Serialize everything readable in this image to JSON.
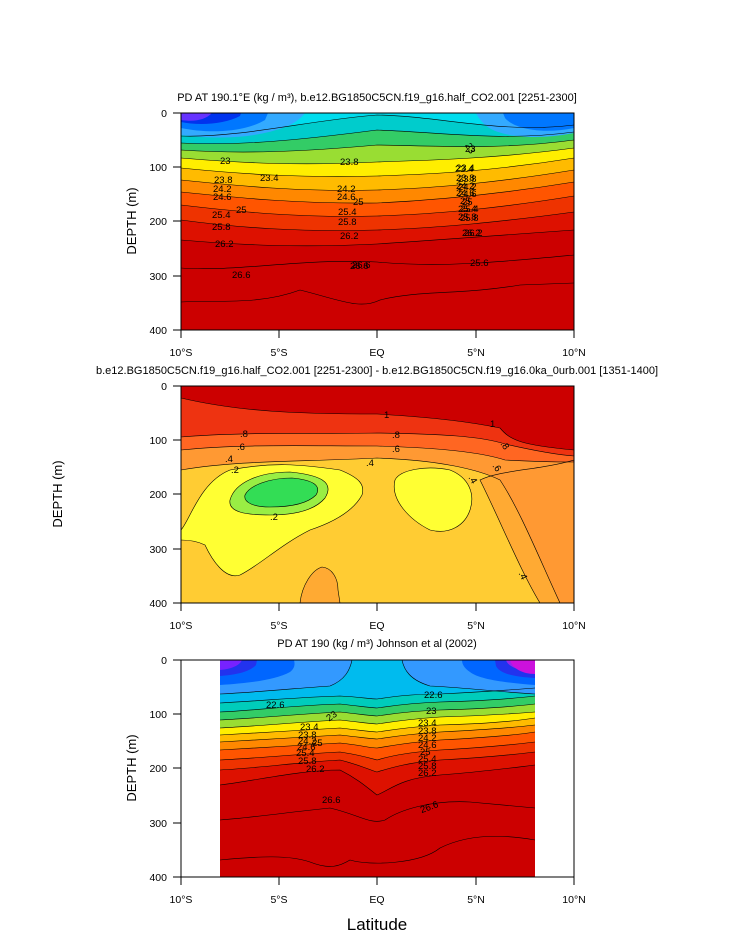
{
  "figure": {
    "xlabel": "Latitude",
    "colors": {
      "deep": "#cc0000",
      "red2": "#dd2200",
      "red3": "#ee3300",
      "orange": "#ff6600",
      "orange2": "#ff9900",
      "yellow": "#ffdd00",
      "green": "#33cc33",
      "cyan": "#00e5ff",
      "blue": "#0088ff",
      "blue2": "#0044ff",
      "purple": "#6600ff",
      "magenta": "#cc00ff",
      "pale_yellow": "#ffee33",
      "light_orange": "#ffaa33",
      "lime": "#33ff66"
    }
  },
  "chart_data": [
    {
      "type": "contour",
      "title": "PD AT 190.1°E (kg / m³), b.e12.BG1850C5CN.f19_g16.half_CO2.001 [2251-2300]",
      "xlabel": "",
      "ylabel": "DEPTH (m)",
      "xlim": [
        -10,
        10
      ],
      "ylim": [
        400,
        0
      ],
      "xticks": [
        "10°S",
        "5°S",
        "EQ",
        "5°N",
        "10°N"
      ],
      "yticks": [
        "0",
        "100",
        "200",
        "300",
        "400"
      ],
      "contour_labels": [
        "23",
        "23.4",
        "23.8",
        "24.2",
        "24.6",
        "25",
        "25.4",
        "25.8",
        "26.2",
        "26.6",
        "23",
        "23.4",
        "23.8",
        "24.2",
        "24.6",
        "25",
        "25.4",
        "25.8",
        "26.2",
        "26.6",
        "23.8",
        "24.2",
        "24.6",
        "25",
        "25.4",
        "25.8",
        "26.2",
        "26.6",
        "23",
        "23.4",
        "23.8",
        "24.2",
        "24.6",
        "25",
        "25.4",
        "25.8",
        "26.2",
        "25.6"
      ]
    },
    {
      "type": "contour",
      "title": "b.e12.BG1850C5CN.f19_g16.half_CO2.001 [2251-2300] - b.e12.BG1850C5CN.f19_g16.0ka_0urb.001 [1351-1400]",
      "xlabel": "",
      "ylabel": "DEPTH (m)",
      "xlim": [
        -10,
        10
      ],
      "ylim": [
        400,
        0
      ],
      "xticks": [
        "10°S",
        "5°S",
        "EQ",
        "5°N",
        "10°N"
      ],
      "yticks": [
        "0",
        "100",
        "200",
        "300",
        "400"
      ],
      "contour_labels": [
        ".8",
        ".6",
        ".4",
        ".2",
        ".2",
        "1",
        ".8",
        ".6",
        ".4",
        "1",
        ".8",
        ".6",
        ".4",
        ".4"
      ]
    },
    {
      "type": "contour",
      "title": "PD AT 190 (kg / m³) Johnson et al (2002)",
      "xlabel": "Latitude",
      "ylabel": "DEPTH (m)",
      "xlim": [
        -10,
        10
      ],
      "ylim": [
        400,
        0
      ],
      "data_xrange": [
        -8,
        8
      ],
      "xticks": [
        "10°S",
        "5°S",
        "EQ",
        "5°N",
        "10°N"
      ],
      "yticks": [
        "0",
        "100",
        "200",
        "300",
        "400"
      ],
      "contour_labels": [
        "22.6",
        "23.4",
        "23",
        "23.8",
        "24.2",
        "24.6",
        "25",
        "25.4",
        "25.8",
        "26.2",
        "26.6",
        "22.6",
        "23",
        "23.4",
        "23.8",
        "24.2",
        "24.6",
        "25",
        "25.4",
        "25.8",
        "26.2",
        "26.6"
      ]
    }
  ]
}
